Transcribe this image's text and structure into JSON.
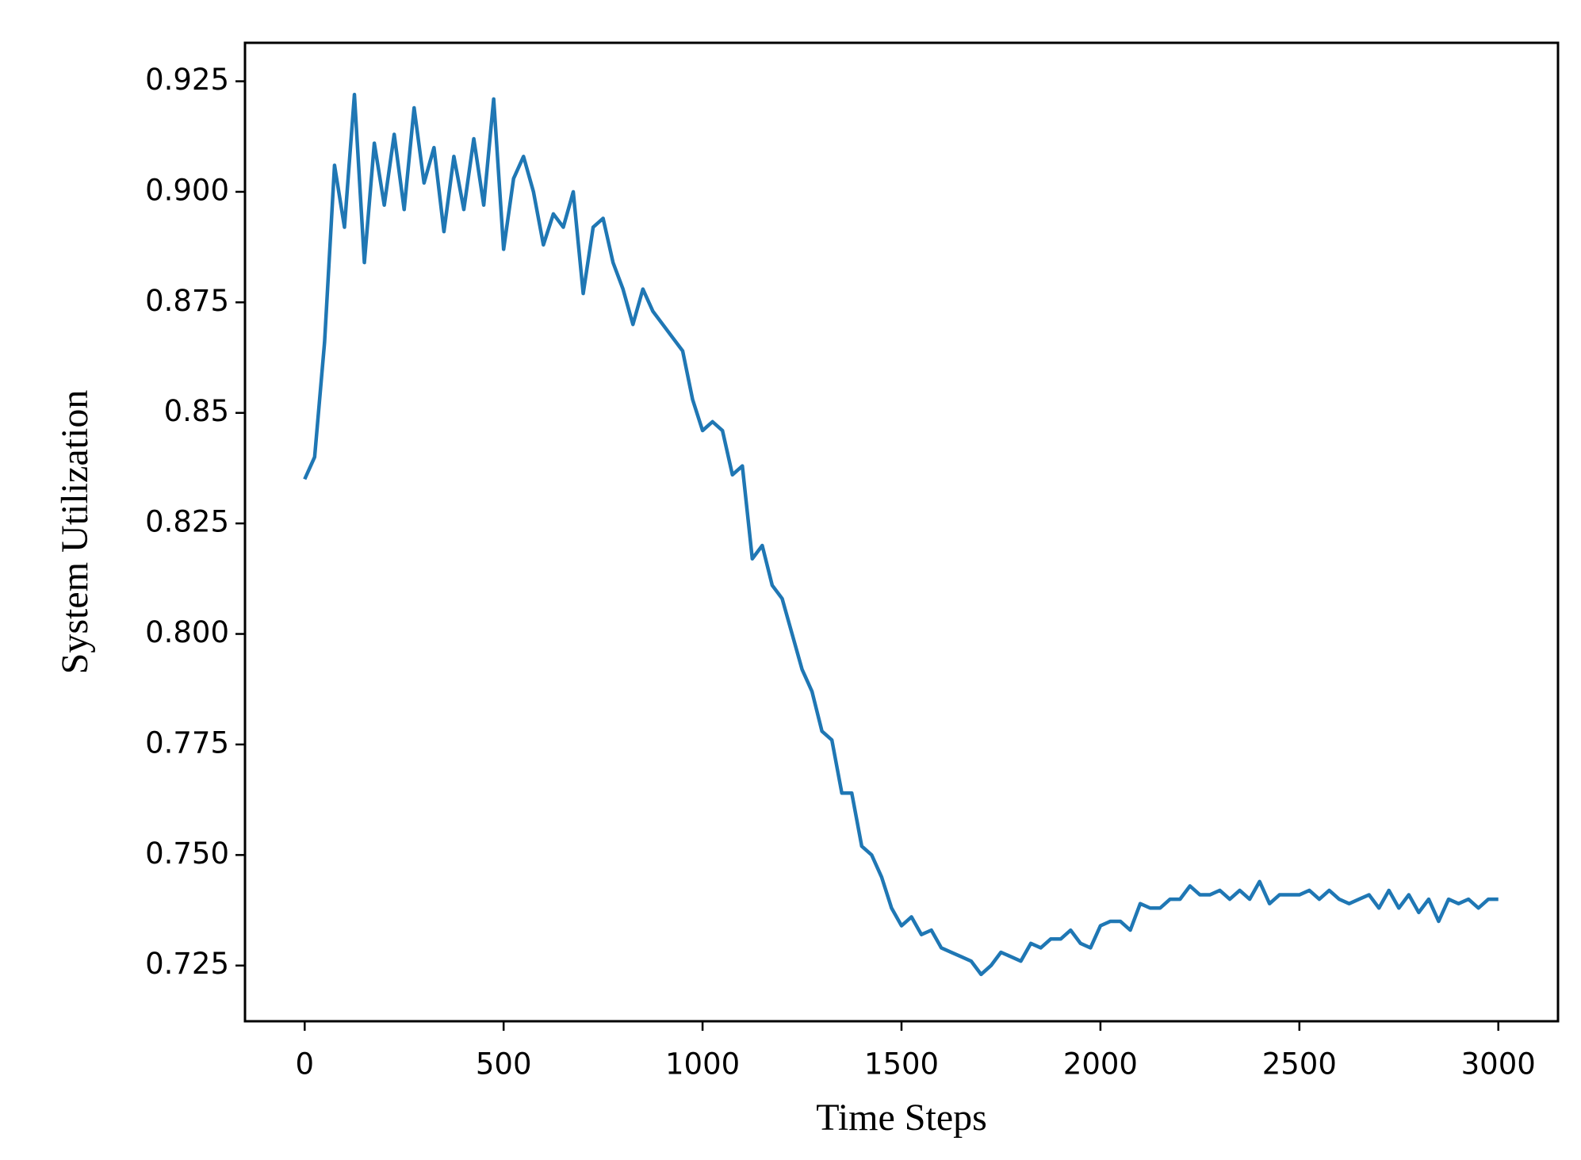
{
  "chart_data": {
    "type": "line",
    "xlabel": "Time Steps",
    "ylabel": "System Utilization",
    "x": [
      0,
      25,
      50,
      75,
      100,
      125,
      150,
      175,
      200,
      225,
      250,
      275,
      300,
      325,
      350,
      375,
      400,
      425,
      450,
      475,
      500,
      525,
      550,
      575,
      600,
      625,
      650,
      675,
      700,
      725,
      750,
      775,
      800,
      825,
      850,
      875,
      900,
      925,
      950,
      975,
      1000,
      1025,
      1050,
      1075,
      1100,
      1125,
      1150,
      1175,
      1200,
      1225,
      1250,
      1275,
      1300,
      1325,
      1350,
      1375,
      1400,
      1425,
      1450,
      1475,
      1500,
      1525,
      1550,
      1575,
      1600,
      1625,
      1650,
      1675,
      1700,
      1725,
      1750,
      1775,
      1800,
      1825,
      1850,
      1875,
      1900,
      1925,
      1950,
      1975,
      2000,
      2025,
      2050,
      2075,
      2100,
      2125,
      2150,
      2175,
      2200,
      2225,
      2250,
      2275,
      2300,
      2325,
      2350,
      2375,
      2400,
      2425,
      2450,
      2475,
      2500,
      2525,
      2550,
      2575,
      2600,
      2625,
      2650,
      2675,
      2700,
      2725,
      2750,
      2775,
      2800,
      2825,
      2850,
      2875,
      2900,
      2925,
      2950,
      2975,
      3000
    ],
    "series": [
      {
        "name": "System Utilization",
        "color": "#1f77b4",
        "values": [
          0.835,
          0.84,
          0.866,
          0.906,
          0.892,
          0.922,
          0.884,
          0.911,
          0.897,
          0.913,
          0.896,
          0.919,
          0.902,
          0.91,
          0.891,
          0.908,
          0.896,
          0.912,
          0.897,
          0.921,
          0.887,
          0.903,
          0.908,
          0.9,
          0.888,
          0.895,
          0.892,
          0.9,
          0.877,
          0.892,
          0.894,
          0.884,
          0.878,
          0.87,
          0.878,
          0.873,
          0.87,
          0.867,
          0.864,
          0.853,
          0.846,
          0.848,
          0.846,
          0.836,
          0.838,
          0.817,
          0.82,
          0.811,
          0.808,
          0.8,
          0.792,
          0.787,
          0.778,
          0.776,
          0.764,
          0.764,
          0.752,
          0.75,
          0.745,
          0.738,
          0.734,
          0.736,
          0.732,
          0.733,
          0.729,
          0.728,
          0.727,
          0.726,
          0.723,
          0.725,
          0.728,
          0.727,
          0.726,
          0.73,
          0.729,
          0.731,
          0.731,
          0.733,
          0.73,
          0.729,
          0.734,
          0.735,
          0.735,
          0.733,
          0.739,
          0.738,
          0.738,
          0.74,
          0.74,
          0.743,
          0.741,
          0.741,
          0.742,
          0.74,
          0.742,
          0.74,
          0.744,
          0.739,
          0.741,
          0.741,
          0.741,
          0.742,
          0.74,
          0.742,
          0.74,
          0.739,
          0.74,
          0.741,
          0.738,
          0.742,
          0.738,
          0.741,
          0.737,
          0.74,
          0.735,
          0.74,
          0.739,
          0.74,
          0.738,
          0.74,
          0.74
        ]
      }
    ],
    "xlim": [
      -150,
      3150
    ],
    "xticks": [
      0,
      500,
      1000,
      1500,
      2000,
      2500,
      3000
    ],
    "ylim": [
      0.7124,
      0.9337
    ],
    "yticks": [
      0.725,
      {
        "value": 0.75,
        "label": "0.750"
      },
      0.775,
      {
        "value": 0.8,
        "label": "0.800"
      },
      0.825,
      0.85,
      0.875,
      {
        "value": 0.9,
        "label": "0.900"
      },
      0.925
    ],
    "grid": false
  }
}
